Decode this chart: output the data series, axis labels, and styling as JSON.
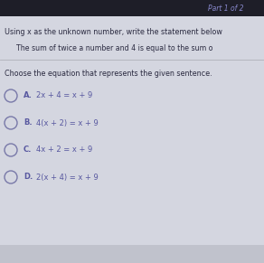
{
  "header": "Part 1 of 2",
  "instruction": "Using x as the unknown number, write the statement below",
  "subtext": "The sum of twice a number and 4 is equal to the sum o",
  "choose_text": "Choose the equation that represents the given sentence.",
  "options": [
    {
      "label": "A.",
      "equation": "2x + 4 = x + 9"
    },
    {
      "label": "B.",
      "equation": "4(x + 2) = x + 9"
    },
    {
      "label": "C.",
      "equation": "4x + 2 = x + 9"
    },
    {
      "label": "D.",
      "equation": "2(x + 4) = x + 9"
    }
  ],
  "bg_top": "#1e1e28",
  "bg_main": "#c8cad4",
  "bg_content": "#d8dae4",
  "circle_color": "#7878a8",
  "text_color": "#3a3a5a",
  "header_color": "#8888cc",
  "divider_color": "#b0b0b8",
  "instruction_color": "#2a2a40",
  "choose_color": "#2a2a40",
  "option_color": "#5858a0"
}
